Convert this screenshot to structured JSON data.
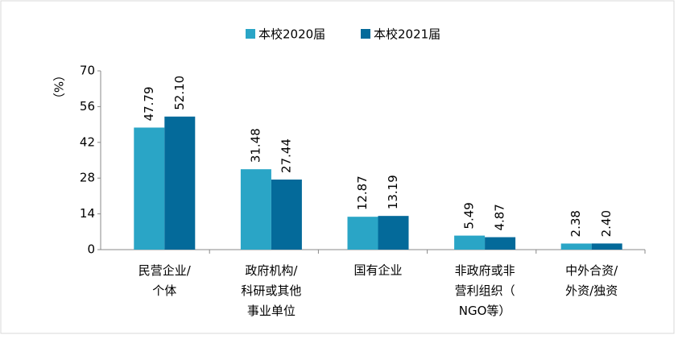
{
  "chart_data": {
    "type": "bar",
    "y_label": "（%）",
    "categories": [
      "民营企业/\n个体",
      "政府机构/\n科研或其他\n事业单位",
      "国有企业",
      "非政府或非\n营利组织（\nNGO等）",
      "中外合资/\n外资/独资"
    ],
    "series": [
      {
        "name": "本校2020届",
        "color": "#2aa5c6",
        "values": [
          47.79,
          31.48,
          12.87,
          5.49,
          2.38
        ],
        "value_labels": [
          "47.79",
          "31.48",
          "12.87",
          "5.49",
          "2.38"
        ]
      },
      {
        "name": "本校2021届",
        "color": "#046a9a",
        "values": [
          52.1,
          27.44,
          13.19,
          4.87,
          2.4
        ],
        "value_labels": [
          "52.10",
          "27.44",
          "13.19",
          "4.87",
          "2.40"
        ]
      }
    ],
    "ylim": [
      0,
      70
    ],
    "yticks": [
      0,
      14,
      28,
      42,
      56,
      70
    ],
    "legend": "top"
  }
}
